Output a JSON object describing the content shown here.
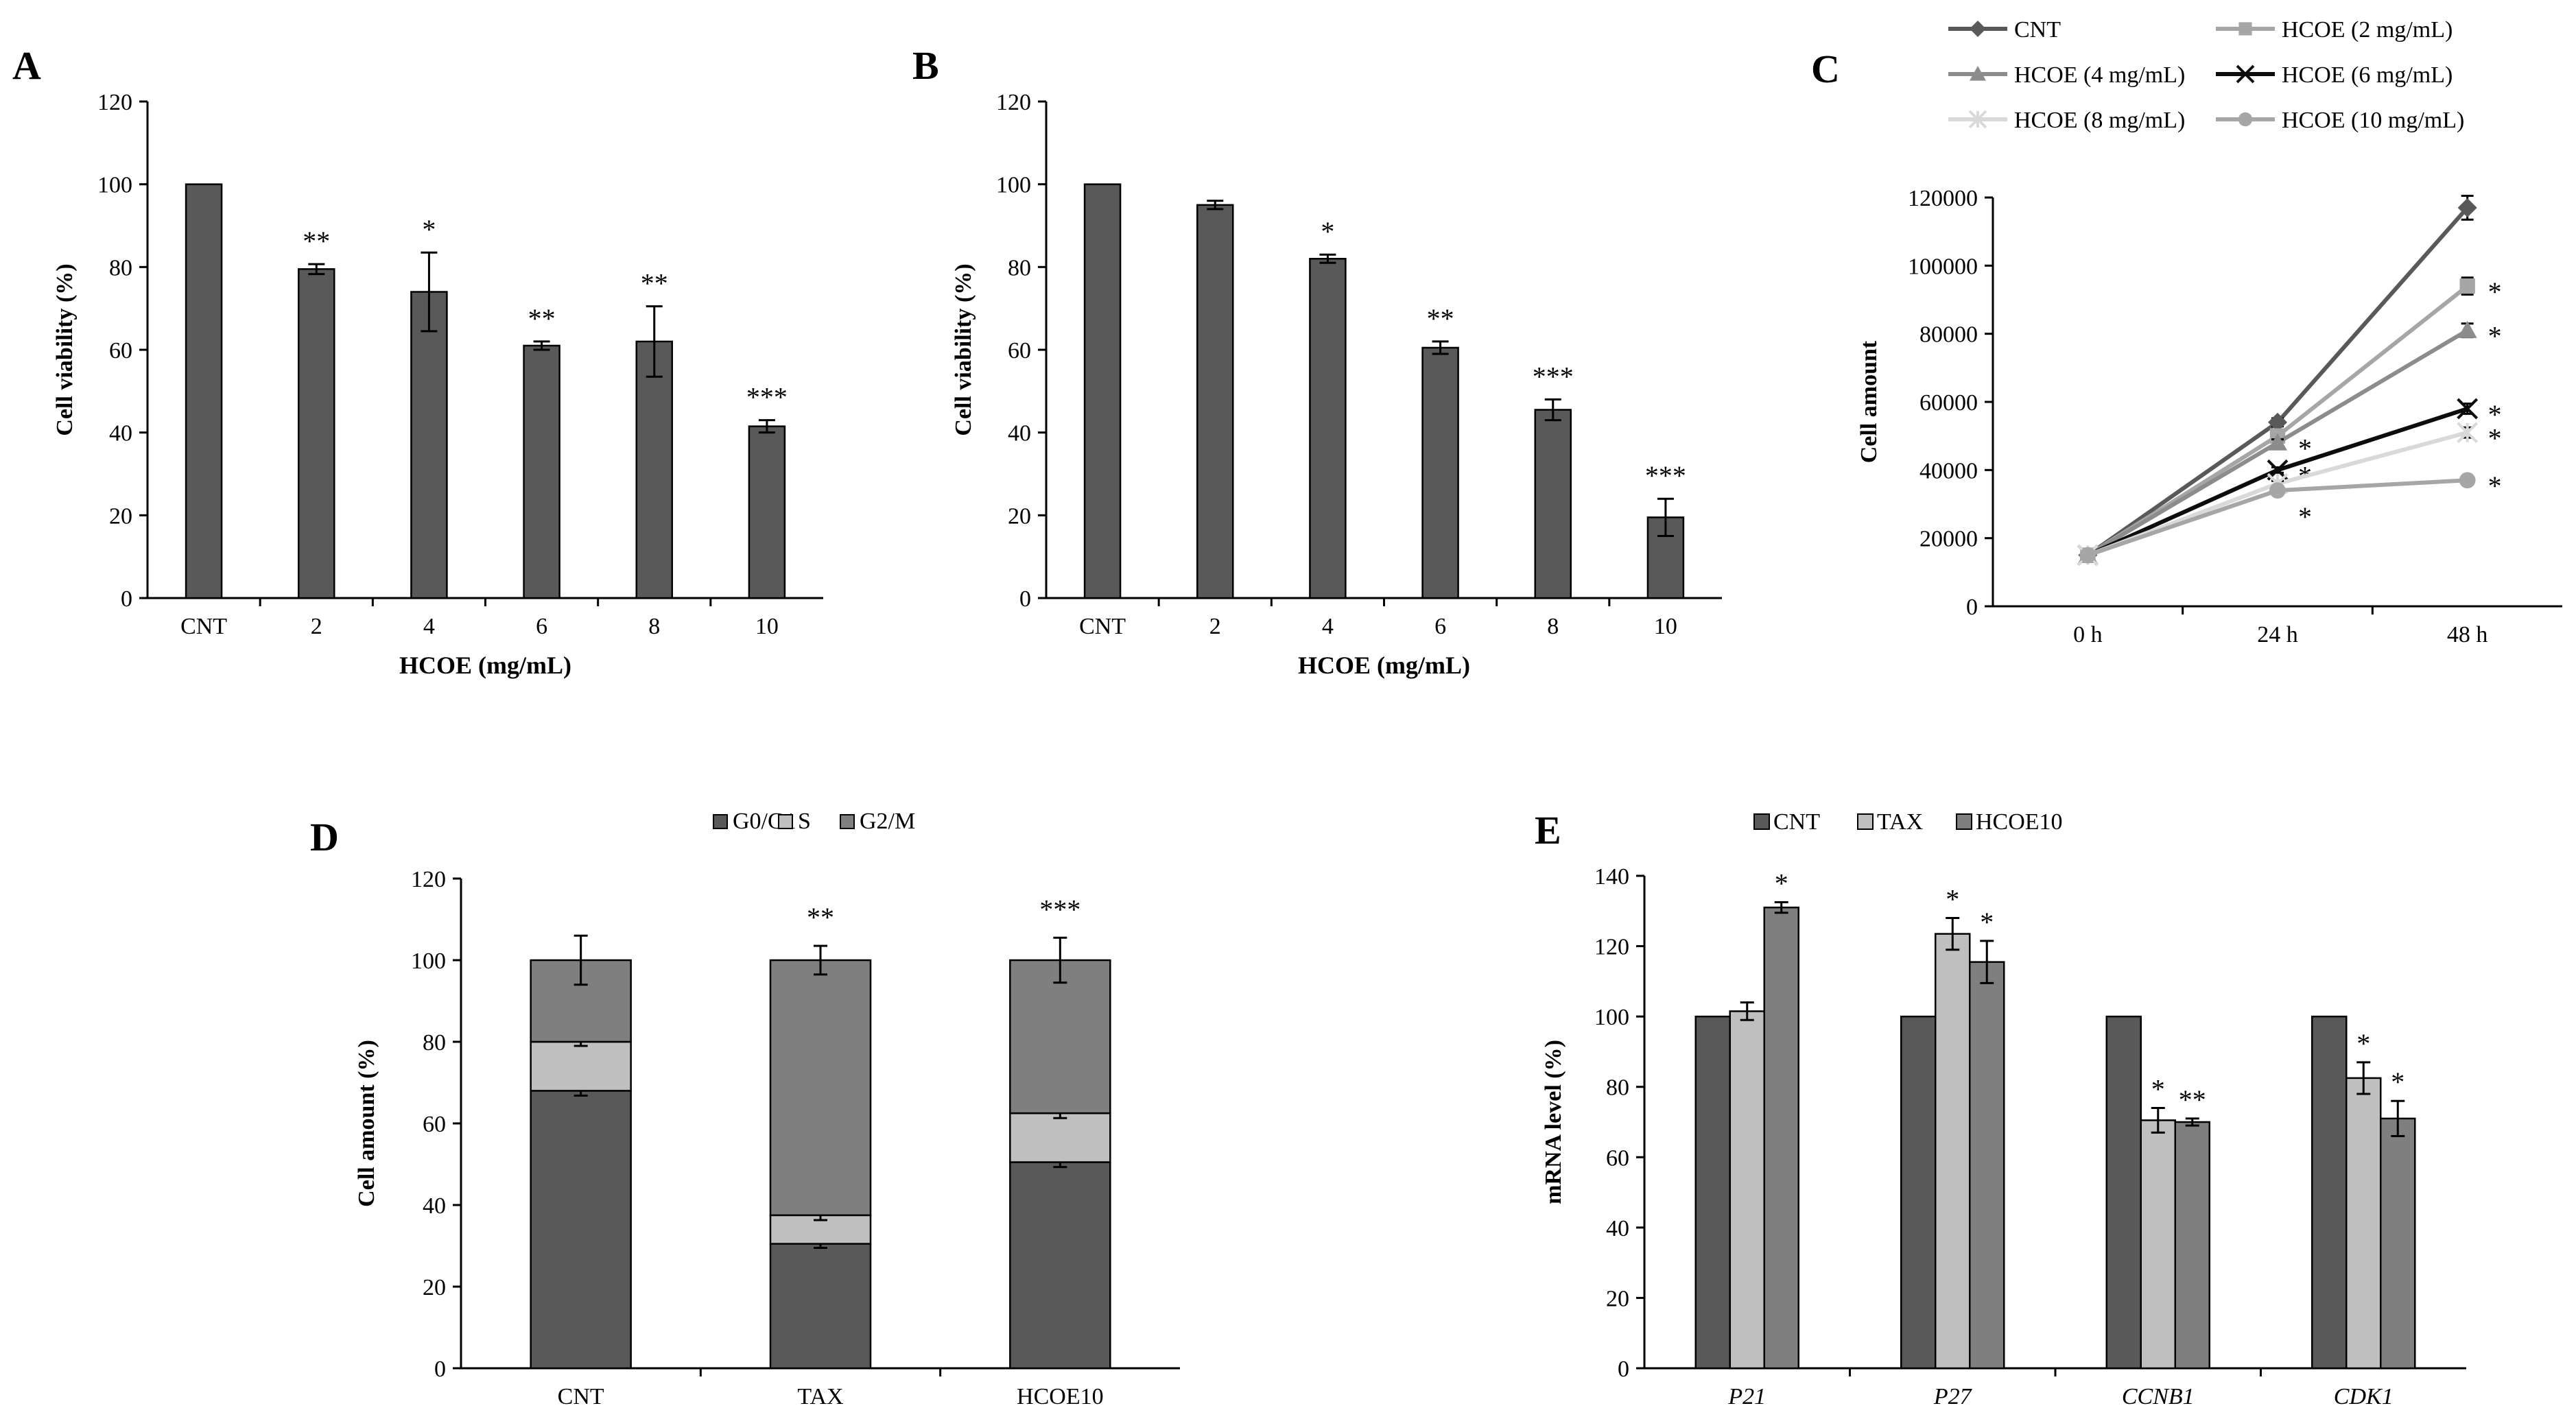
{
  "colors": {
    "bar_dark": "#595959",
    "bar_light": "#bfbfbf",
    "bar_mid": "#7f7f7f",
    "line_cnt": "#595959",
    "line_2": "#a6a6a6",
    "line_4": "#8c8c8c",
    "line_6": "#0d0d0d",
    "line_8": "#d9d9d9",
    "line_10": "#a6a6a6"
  },
  "chart_data": [
    {
      "id": "A",
      "panel_label": "A",
      "type": "bar",
      "xlabel": "HCOE (mg/mL)",
      "ylabel": "Cell viability (%)",
      "ylim": [
        0,
        120
      ],
      "yticks": [
        "0",
        "20",
        "40",
        "60",
        "80",
        "100",
        "120"
      ],
      "categories": [
        "CNT",
        "2",
        "4",
        "6",
        "8",
        "10"
      ],
      "values": [
        100,
        79.5,
        74,
        61,
        62,
        41.5
      ],
      "errors": [
        0,
        1.2,
        9.5,
        1,
        8.5,
        1.5
      ],
      "significance": [
        "",
        "**",
        "*",
        "**",
        "**",
        "***"
      ]
    },
    {
      "id": "B",
      "panel_label": "B",
      "type": "bar",
      "xlabel": "HCOE (mg/mL)",
      "ylabel": "Cell viability (%)",
      "ylim": [
        0,
        120
      ],
      "yticks": [
        "0",
        "20",
        "40",
        "60",
        "80",
        "100",
        "120"
      ],
      "categories": [
        "CNT",
        "2",
        "4",
        "6",
        "8",
        "10"
      ],
      "values": [
        100,
        95,
        82,
        60.5,
        45.5,
        19.5
      ],
      "errors": [
        0,
        1,
        1,
        1.5,
        2.5,
        4.5
      ],
      "significance": [
        "",
        "",
        "*",
        "**",
        "***",
        "***"
      ]
    },
    {
      "id": "C",
      "panel_label": "C",
      "type": "line",
      "xlabel": "",
      "ylabel": "Cell amount",
      "ylim": [
        0,
        120000
      ],
      "yticks": [
        "0",
        "20000",
        "40000",
        "60000",
        "80000",
        "100000",
        "120000"
      ],
      "x": [
        "0 h",
        "24 h",
        "48 h"
      ],
      "legend_position": "top",
      "series": [
        {
          "name": "CNT",
          "values": [
            15000,
            54000,
            117000
          ],
          "errors": [
            0,
            1200,
            3500
          ],
          "marker": "diamond",
          "sig": [
            "",
            "",
            ""
          ]
        },
        {
          "name": "HCOE (2 mg/mL)",
          "values": [
            15000,
            50000,
            94000
          ],
          "errors": [
            0,
            1000,
            2500
          ],
          "marker": "square",
          "sig": [
            "",
            "",
            "*"
          ]
        },
        {
          "name": "HCOE (4 mg/mL)",
          "values": [
            15000,
            48000,
            81000
          ],
          "errors": [
            0,
            1000,
            2000
          ],
          "marker": "triangle",
          "sig": [
            "",
            "*",
            "*"
          ]
        },
        {
          "name": "HCOE (6 mg/mL)",
          "values": [
            15000,
            40000,
            58000
          ],
          "errors": [
            0,
            800,
            1500
          ],
          "marker": "x",
          "sig": [
            "",
            "*",
            "*"
          ]
        },
        {
          "name": "HCOE (8 mg/mL)",
          "values": [
            15000,
            36000,
            51000
          ],
          "errors": [
            0,
            800,
            1500
          ],
          "marker": "star",
          "sig": [
            "",
            "",
            "*"
          ]
        },
        {
          "name": "HCOE (10 mg/mL)",
          "values": [
            15000,
            34000,
            37000
          ],
          "errors": [
            0,
            800,
            1000
          ],
          "marker": "circle",
          "sig": [
            "",
            "*",
            "*"
          ]
        }
      ]
    },
    {
      "id": "D",
      "panel_label": "D",
      "type": "bar",
      "stacked": true,
      "xlabel": "",
      "ylabel": "Cell amount (%)",
      "ylim": [
        0,
        120
      ],
      "yticks": [
        "0",
        "20",
        "40",
        "60",
        "80",
        "100",
        "120"
      ],
      "categories": [
        "CNT",
        "TAX",
        "HCOE10"
      ],
      "legend_position": "top",
      "series": [
        {
          "name": "G0/G1",
          "values": [
            68,
            30.5,
            50.5
          ],
          "errors": [
            1.2,
            1,
            1.2
          ]
        },
        {
          "name": "S",
          "values": [
            12,
            7,
            12
          ],
          "errors": [
            1,
            1.2,
            1.2
          ]
        },
        {
          "name": "G2/M",
          "values": [
            20,
            62.5,
            37.5
          ],
          "errors": [
            6,
            3.5,
            5.5
          ]
        }
      ],
      "significance": [
        "",
        "**",
        "***"
      ]
    },
    {
      "id": "E",
      "panel_label": "E",
      "type": "bar",
      "xlabel": "",
      "ylabel": "mRNA level (%)",
      "ylim": [
        0,
        140
      ],
      "yticks": [
        "0",
        "20",
        "40",
        "60",
        "80",
        "100",
        "120",
        "140"
      ],
      "categories": [
        "P21",
        "P27",
        "CCNB1",
        "CDK1"
      ],
      "legend_position": "top",
      "series": [
        {
          "name": "CNT",
          "values": [
            100,
            100,
            100,
            100
          ],
          "errors": [
            0,
            0,
            0,
            0
          ],
          "sig": [
            "",
            "",
            "",
            ""
          ]
        },
        {
          "name": "TAX",
          "values": [
            101.5,
            123.5,
            70.5,
            82.5
          ],
          "errors": [
            2.5,
            4.5,
            3.5,
            4.5
          ],
          "sig": [
            "",
            "*",
            "*",
            "*"
          ]
        },
        {
          "name": "HCOE10",
          "values": [
            131,
            115.5,
            70,
            71
          ],
          "errors": [
            1.5,
            6,
            1,
            5
          ],
          "sig": [
            "*",
            "*",
            "**",
            "*"
          ]
        }
      ]
    }
  ]
}
